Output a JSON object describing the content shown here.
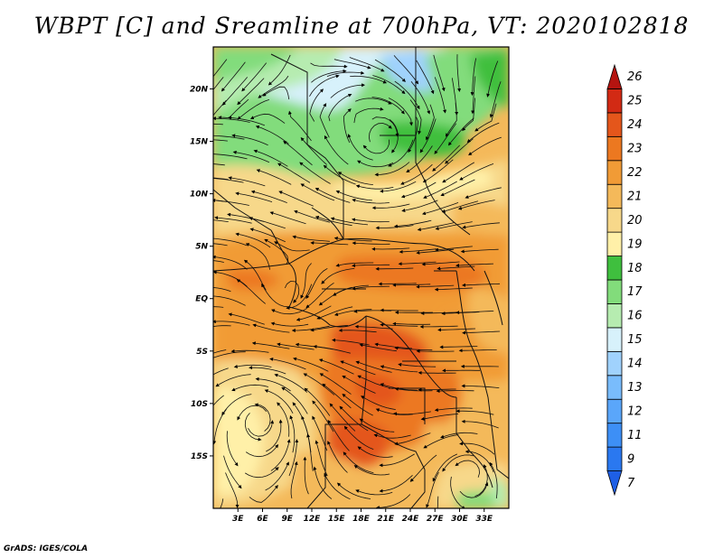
{
  "title": "WBPT [C] and Sreamline at 700hPa, VT: 2020102818",
  "footer": "GrADS: IGES/COLA",
  "map": {
    "lon_range": [
      0,
      36
    ],
    "lat_range": [
      -20,
      24
    ],
    "lon_ticks": [
      "3E",
      "6E",
      "9E",
      "12E",
      "15E",
      "18E",
      "21E",
      "24E",
      "27E",
      "30E",
      "33E"
    ],
    "lat_ticks": [
      "20N",
      "15N",
      "10N",
      "5N",
      "EQ",
      "5S",
      "10S",
      "15S"
    ]
  },
  "colorbar": {
    "labels": [
      "7",
      "9",
      "11",
      "12",
      "13",
      "14",
      "15",
      "16",
      "17",
      "18",
      "19",
      "20",
      "21",
      "22",
      "23",
      "24",
      "25",
      "26"
    ],
    "colors": [
      "#1e5fe6",
      "#2a78f0",
      "#3d8ff6",
      "#5aa6fa",
      "#79bcfc",
      "#a0d2fd",
      "#d7f1fb",
      "#b6ecb0",
      "#82dc7b",
      "#3fbf3e",
      "#fff0a8",
      "#f7d88a",
      "#f4b95a",
      "#f19b36",
      "#ec7820",
      "#e4561b",
      "#d22a14",
      "#b51410"
    ]
  },
  "field_colors": {
    "green_dark": "#3fbf3e",
    "green": "#82dc7b",
    "green_light": "#b6ecb0",
    "cyan_light": "#d7f1fb",
    "blue_light": "#a0d2fd",
    "yellow": "#fff0a8",
    "sand": "#f7d88a",
    "orange_light": "#f4b95a",
    "orange": "#f19b36",
    "orange_dark": "#ec7820",
    "red_orange": "#e4561b"
  }
}
